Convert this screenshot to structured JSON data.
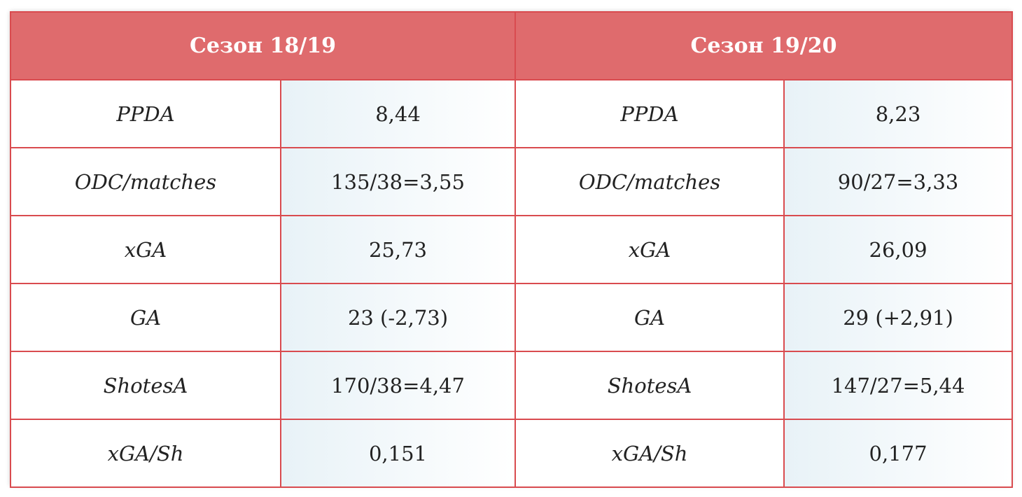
{
  "header": {
    "season_left": "Сезон 18/19",
    "season_right": "Сезон 19/20"
  },
  "rows": [
    {
      "metric": "PPDA",
      "left": "8,44",
      "right": "8,23"
    },
    {
      "metric": "ODC/matches",
      "left": "135/38=3,55",
      "right": "90/27=3,33"
    },
    {
      "metric": "xGA",
      "left": "25,73",
      "right": "26,09"
    },
    {
      "metric": "GA",
      "left": "23 (-2,73)",
      "right": "29 (+2,91)"
    },
    {
      "metric": "ShotesA",
      "left": "170/38=4,47",
      "right": "147/27=5,44"
    },
    {
      "metric": "xGA/Sh",
      "left": "0,151",
      "right": "0,177"
    }
  ],
  "colors": {
    "header_bg": "#df6b6d",
    "border": "#d94b4f",
    "value_cell_tint": "#e8f2f7"
  }
}
